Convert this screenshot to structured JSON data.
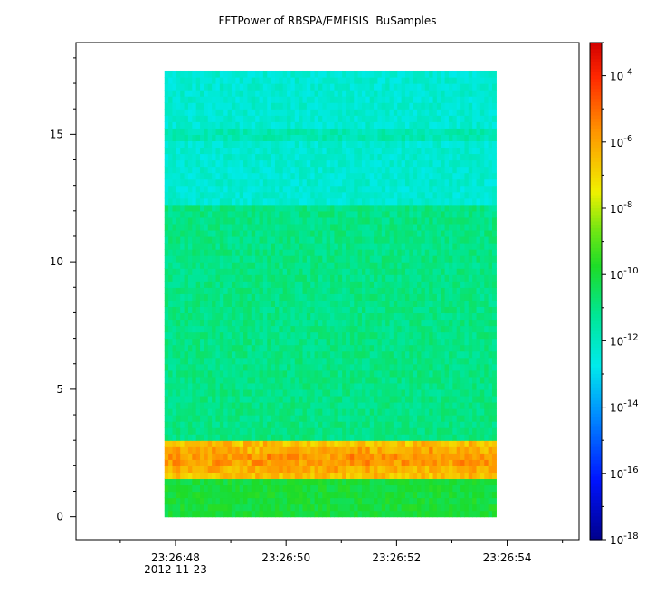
{
  "chart_data": {
    "type": "heatmap",
    "title": "FFTPower of RBSPA/EMFISIS  BuSamples",
    "xlabel": "",
    "ylabel": "",
    "x_date_label": "2012-11-23",
    "x_ticks": [
      {
        "label": "23:26:48",
        "t": 48
      },
      {
        "label": "23:26:50",
        "t": 50
      },
      {
        "label": "23:26:52",
        "t": 52
      },
      {
        "label": "23:26:54",
        "t": 54
      }
    ],
    "xlim_seconds": [
      46.2,
      55.3
    ],
    "data_time_range_seconds": [
      47.8,
      53.8
    ],
    "y_ticks": [
      0,
      5,
      10,
      15
    ],
    "ylim": [
      -0.9,
      18.6
    ],
    "data_y_range": [
      0,
      17.5
    ],
    "colorbar": {
      "scale": "log",
      "range": [
        "1e-18",
        "1e-3"
      ],
      "colormap": "rainbow",
      "tick_labels": [
        {
          "base": "10",
          "exp": "-4",
          "value": 0.0001
        },
        {
          "base": "10",
          "exp": "-6",
          "value": 1e-06
        },
        {
          "base": "10",
          "exp": "-8",
          "value": 1e-08
        },
        {
          "base": "10",
          "exp": "-10",
          "value": 1e-10
        },
        {
          "base": "10",
          "exp": "-12",
          "value": 1e-12
        },
        {
          "base": "10",
          "exp": "-14",
          "value": 1e-14
        },
        {
          "base": "10",
          "exp": "-16",
          "value": 1e-16
        },
        {
          "base": "10",
          "exp": "-18",
          "value": 1e-18
        }
      ]
    },
    "bands": [
      {
        "y_range": [
          12.2,
          17.5
        ],
        "log_power": -12.3
      },
      {
        "y_range": [
          3.0,
          12.2
        ],
        "log_power": -11.0
      },
      {
        "y_range": [
          1.5,
          3.0
        ],
        "log_power": -6.8
      },
      {
        "y_range": [
          0,
          1.5
        ],
        "log_power": -10.0
      }
    ],
    "line_at": 15.0,
    "colors": {
      "axis": "#000000",
      "band_high": "#00e58a",
      "band_mid": "#2ee820",
      "band_intense": "#ff7a00",
      "background": "#ffffff"
    }
  }
}
